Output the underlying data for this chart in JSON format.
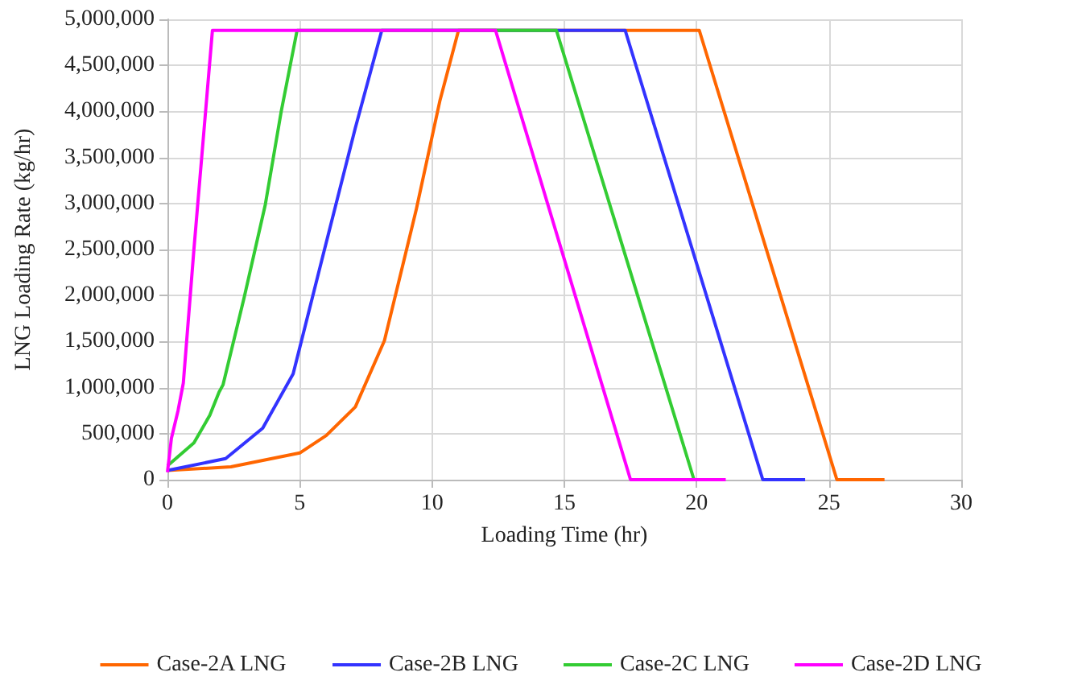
{
  "chart_data": {
    "type": "line",
    "xlabel": "Loading Time (hr)",
    "ylabel": "LNG Loading Rate (kg/hr)",
    "xlim": [
      0,
      30
    ],
    "xticks": [
      0,
      5,
      10,
      15,
      20,
      25,
      30
    ],
    "ylim": [
      0,
      5000000
    ],
    "yticks": [
      0,
      {
        "value": 500000,
        "label": "500,000"
      },
      {
        "value": 1000000,
        "label": "1,000,000"
      },
      {
        "value": 1500000,
        "label": "1,500,000"
      },
      {
        "value": 2000000,
        "label": "2,000,000"
      },
      {
        "value": 2500000,
        "label": "2,500,000"
      },
      {
        "value": 3000000,
        "label": "3,000,000"
      },
      {
        "value": 3500000,
        "label": "3,500,000"
      },
      {
        "value": 4000000,
        "label": "4,000,000"
      },
      {
        "value": 4500000,
        "label": "4,500,000"
      },
      {
        "value": 5000000,
        "label": "5,000,000"
      }
    ],
    "grid": true,
    "legend": "bottom",
    "marker": "none",
    "line_style": "solid",
    "series": [
      {
        "name": "Case-2A LNG",
        "color": "#ff6600",
        "x": [
          0,
          2.4,
          5,
          6,
          7.1,
          8.2,
          9.4,
          10.3,
          11,
          20.1,
          25.3,
          27.1
        ],
        "values": [
          100000,
          140000,
          290000,
          480000,
          790000,
          1510000,
          2930000,
          4120000,
          4880000,
          4880000,
          0,
          0
        ]
      },
      {
        "name": "Case-2B LNG",
        "color": "#3333ff",
        "x": [
          0,
          2.2,
          3.6,
          4.75,
          5.9,
          7.1,
          8.1,
          17.3,
          22.5,
          24.1
        ],
        "values": [
          100000,
          230000,
          560000,
          1150000,
          2460000,
          3820000,
          4880000,
          4880000,
          0,
          0
        ]
      },
      {
        "name": "Case-2C LNG",
        "color": "#33cc33",
        "x": [
          0,
          1,
          1.6,
          1.95,
          2.1,
          2.9,
          3.7,
          4.3,
          4.9,
          14.7,
          19.9
        ],
        "values": [
          150000,
          400000,
          700000,
          950000,
          1030000,
          1980000,
          2990000,
          4000000,
          4880000,
          4880000,
          0
        ]
      },
      {
        "name": "Case-2D LNG",
        "color": "#ff00ff",
        "x": [
          0,
          0.15,
          0.4,
          0.6,
          1.0,
          1.7,
          12.4,
          17.5,
          21.1
        ],
        "values": [
          80000,
          450000,
          750000,
          1050000,
          2500000,
          4880000,
          4880000,
          0,
          0
        ]
      }
    ]
  }
}
